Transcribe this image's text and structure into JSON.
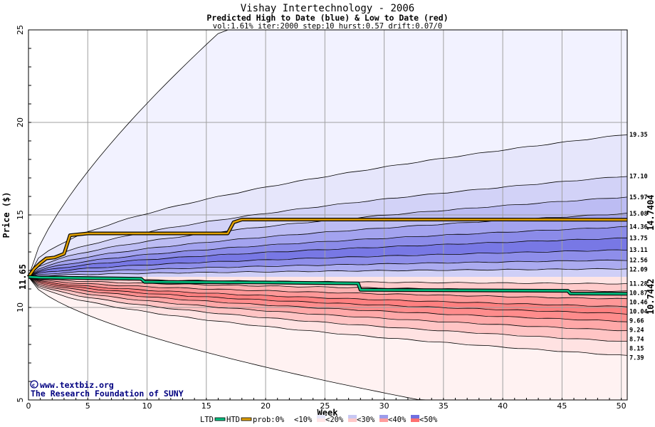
{
  "chart_data": {
    "type": "area",
    "title": "Vishay Intertechnology - 2006",
    "subtitle": "Predicted High to Date (blue) &  Low to Date (red)",
    "params": "vol:1.61% iter:2000 step:10 hurst:0.57 drift:0.07/0",
    "xlabel": "Week",
    "ylabel": "Price ($)",
    "xlim": [
      0,
      50.5
    ],
    "ylim": [
      5,
      25
    ],
    "x_ticks": [
      0,
      5,
      10,
      15,
      20,
      25,
      30,
      35,
      40,
      45,
      50
    ],
    "y_ticks": [
      5,
      10,
      15,
      20,
      25
    ],
    "grid": true,
    "start_price": 11.65,
    "start_price_label": "11.65",
    "quantile_end_values": [
      19.35,
      17.1,
      15.97,
      15.08,
      14.36,
      13.75,
      13.11,
      12.56,
      12.09,
      11.28,
      10.87,
      10.46,
      10.04,
      9.66,
      9.24,
      8.74,
      8.15,
      7.39
    ],
    "quantile_end_labels": [
      "19.35",
      "17.10",
      "15.97",
      "15.08",
      "14.36",
      "13.75",
      "13.11",
      "12.56",
      "12.09",
      "11.28",
      "10.87",
      "10.46",
      "10.04",
      "9.66",
      "9.24",
      "8.74",
      "8.15",
      "7.39"
    ],
    "outer_upper_end": 25,
    "outer_lower_end": 5,
    "series": [
      {
        "name": "HTD",
        "color": "#e0a000",
        "label": "14.7404",
        "points": [
          [
            0,
            11.65
          ],
          [
            0.5,
            12.1
          ],
          [
            1,
            12.4
          ],
          [
            1.5,
            12.65
          ],
          [
            2.2,
            12.7
          ],
          [
            3,
            12.9
          ],
          [
            3.5,
            13.9
          ],
          [
            5,
            14.0
          ],
          [
            10,
            14.0
          ],
          [
            16.8,
            14.0
          ],
          [
            17.3,
            14.6
          ],
          [
            18,
            14.75
          ],
          [
            30,
            14.75
          ],
          [
            40,
            14.75
          ],
          [
            50.5,
            14.74
          ]
        ]
      },
      {
        "name": "LTD",
        "color": "#00c080",
        "label": "10.7442",
        "points": [
          [
            0,
            11.65
          ],
          [
            1,
            11.62
          ],
          [
            9.5,
            11.55
          ],
          [
            9.8,
            11.38
          ],
          [
            20,
            11.35
          ],
          [
            27.8,
            11.3
          ],
          [
            28,
            10.95
          ],
          [
            45.5,
            10.9
          ],
          [
            45.7,
            10.75
          ],
          [
            50.5,
            10.74
          ]
        ]
      }
    ],
    "blue_band_colors": [
      "#e6e6fb",
      "#d2d2f7",
      "#bcbcf3",
      "#a3a3ef",
      "#8b8be9",
      "#7878e5",
      "#8e8eea",
      "#ababf0",
      "#cfcff7"
    ],
    "red_band_colors": [
      "#ffe4e4",
      "#ffcbcb",
      "#ffb0b0",
      "#ff9898",
      "#ff8080",
      "#ff8c8c",
      "#ffa8a8",
      "#ffc4c4",
      "#ffe2e2"
    ],
    "outer_blue_color": "#f2f2ff",
    "outer_red_color": "#fff2f2",
    "credit_line1": "www.textbiz.org",
    "credit_line2": "The Research Foundation of SUNY",
    "credit_symbol": "©",
    "legend": {
      "ltd": "LTD",
      "htd": "HTD",
      "prob_prefix": "prob:0%",
      "items": [
        "<10%",
        "<20%",
        "<30%",
        "<40%",
        "<50%"
      ],
      "item_colors": [
        "#ffffff",
        "#e8e8fb",
        "#c8c8f3",
        "#9c9cea",
        "#7070e0"
      ],
      "item_colors_red": [
        "#ffffff",
        "#ffe6e6",
        "#ffc8c8",
        "#ff9c9c",
        "#ff7070"
      ]
    }
  }
}
